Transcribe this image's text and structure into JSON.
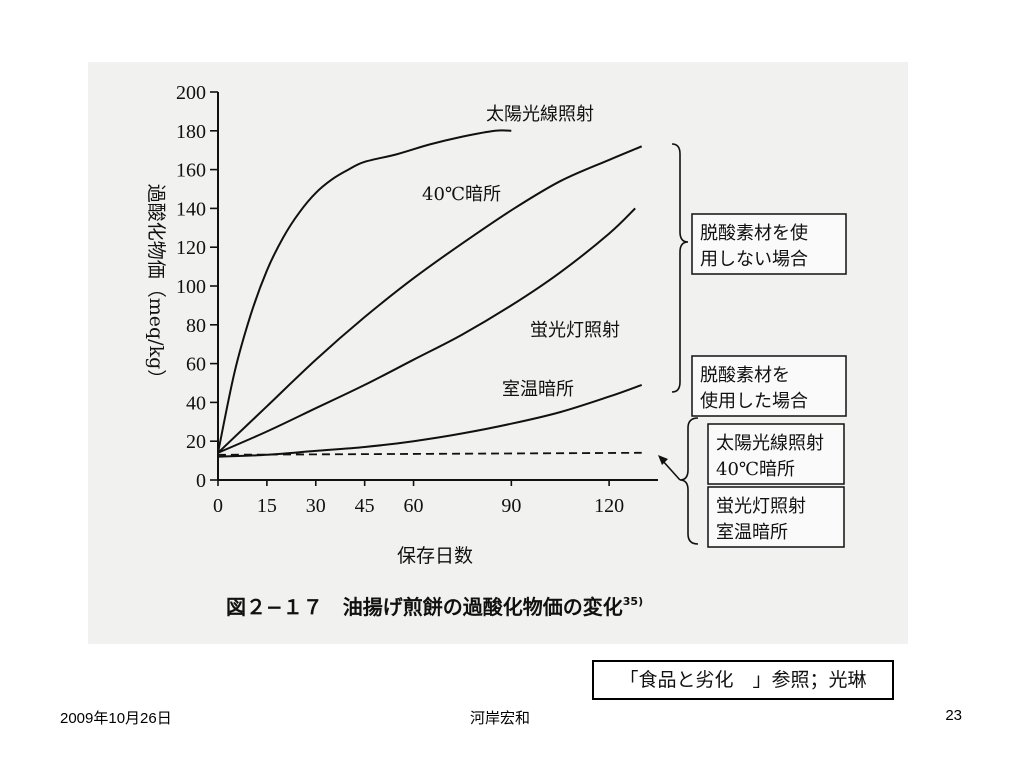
{
  "chart_data": {
    "type": "line",
    "title": "図２−１７　油揚げ煎餅の過酸化物価の変化",
    "title_superscript": "35)",
    "xlabel": "保存日数",
    "ylabel": "過酸化物価（meq/kg）",
    "x_ticks": [
      0,
      15,
      30,
      45,
      60,
      90,
      120
    ],
    "y_ticks": [
      0,
      20,
      40,
      60,
      80,
      100,
      120,
      140,
      160,
      180,
      200
    ],
    "xlim": [
      0,
      135
    ],
    "ylim": [
      0,
      200
    ],
    "grid": false,
    "series": [
      {
        "name": "太陽光線照射",
        "style": "solid",
        "x": [
          0,
          5,
          10,
          15,
          20,
          25,
          30,
          35,
          40,
          45,
          55,
          65,
          75,
          85,
          90
        ],
        "y": [
          14,
          55,
          85,
          108,
          125,
          138,
          148,
          155,
          160,
          164,
          168,
          173,
          177,
          180,
          180
        ]
      },
      {
        "name": "40℃暗所",
        "style": "solid",
        "x": [
          0,
          15,
          30,
          45,
          60,
          75,
          90,
          105,
          120,
          130
        ],
        "y": [
          14,
          38,
          62,
          84,
          104,
          122,
          139,
          154,
          165,
          172
        ]
      },
      {
        "name": "蛍光灯照射",
        "style": "solid",
        "x": [
          0,
          15,
          30,
          45,
          60,
          75,
          90,
          105,
          120,
          128
        ],
        "y": [
          14,
          25,
          37,
          49,
          62,
          75,
          90,
          107,
          127,
          140
        ]
      },
      {
        "name": "室温暗所",
        "style": "solid",
        "x": [
          0,
          15,
          30,
          45,
          60,
          75,
          90,
          105,
          120,
          130
        ],
        "y": [
          12,
          13,
          15,
          17,
          20,
          24,
          29,
          35,
          43,
          49
        ]
      },
      {
        "name": "脱酸素材を使用した場合",
        "style": "dashed",
        "x": [
          0,
          130
        ],
        "y": [
          13,
          14
        ]
      }
    ],
    "annotations": [
      {
        "id": "no_absorber",
        "text": [
          "脱酸素材を使",
          "用しない場合"
        ]
      },
      {
        "id": "with_absorber",
        "text": [
          "脱酸素材を",
          "使用した場合"
        ]
      },
      {
        "id": "group1",
        "text": [
          "太陽光線照射",
          "40℃暗所"
        ]
      },
      {
        "id": "group2",
        "text": [
          "蛍光灯照射",
          "室温暗所"
        ]
      }
    ]
  },
  "reference_note": "「食品と劣化　」参照；光琳",
  "footer": {
    "date": "2009年10月26日",
    "author": "河岸宏和",
    "page": "23"
  }
}
